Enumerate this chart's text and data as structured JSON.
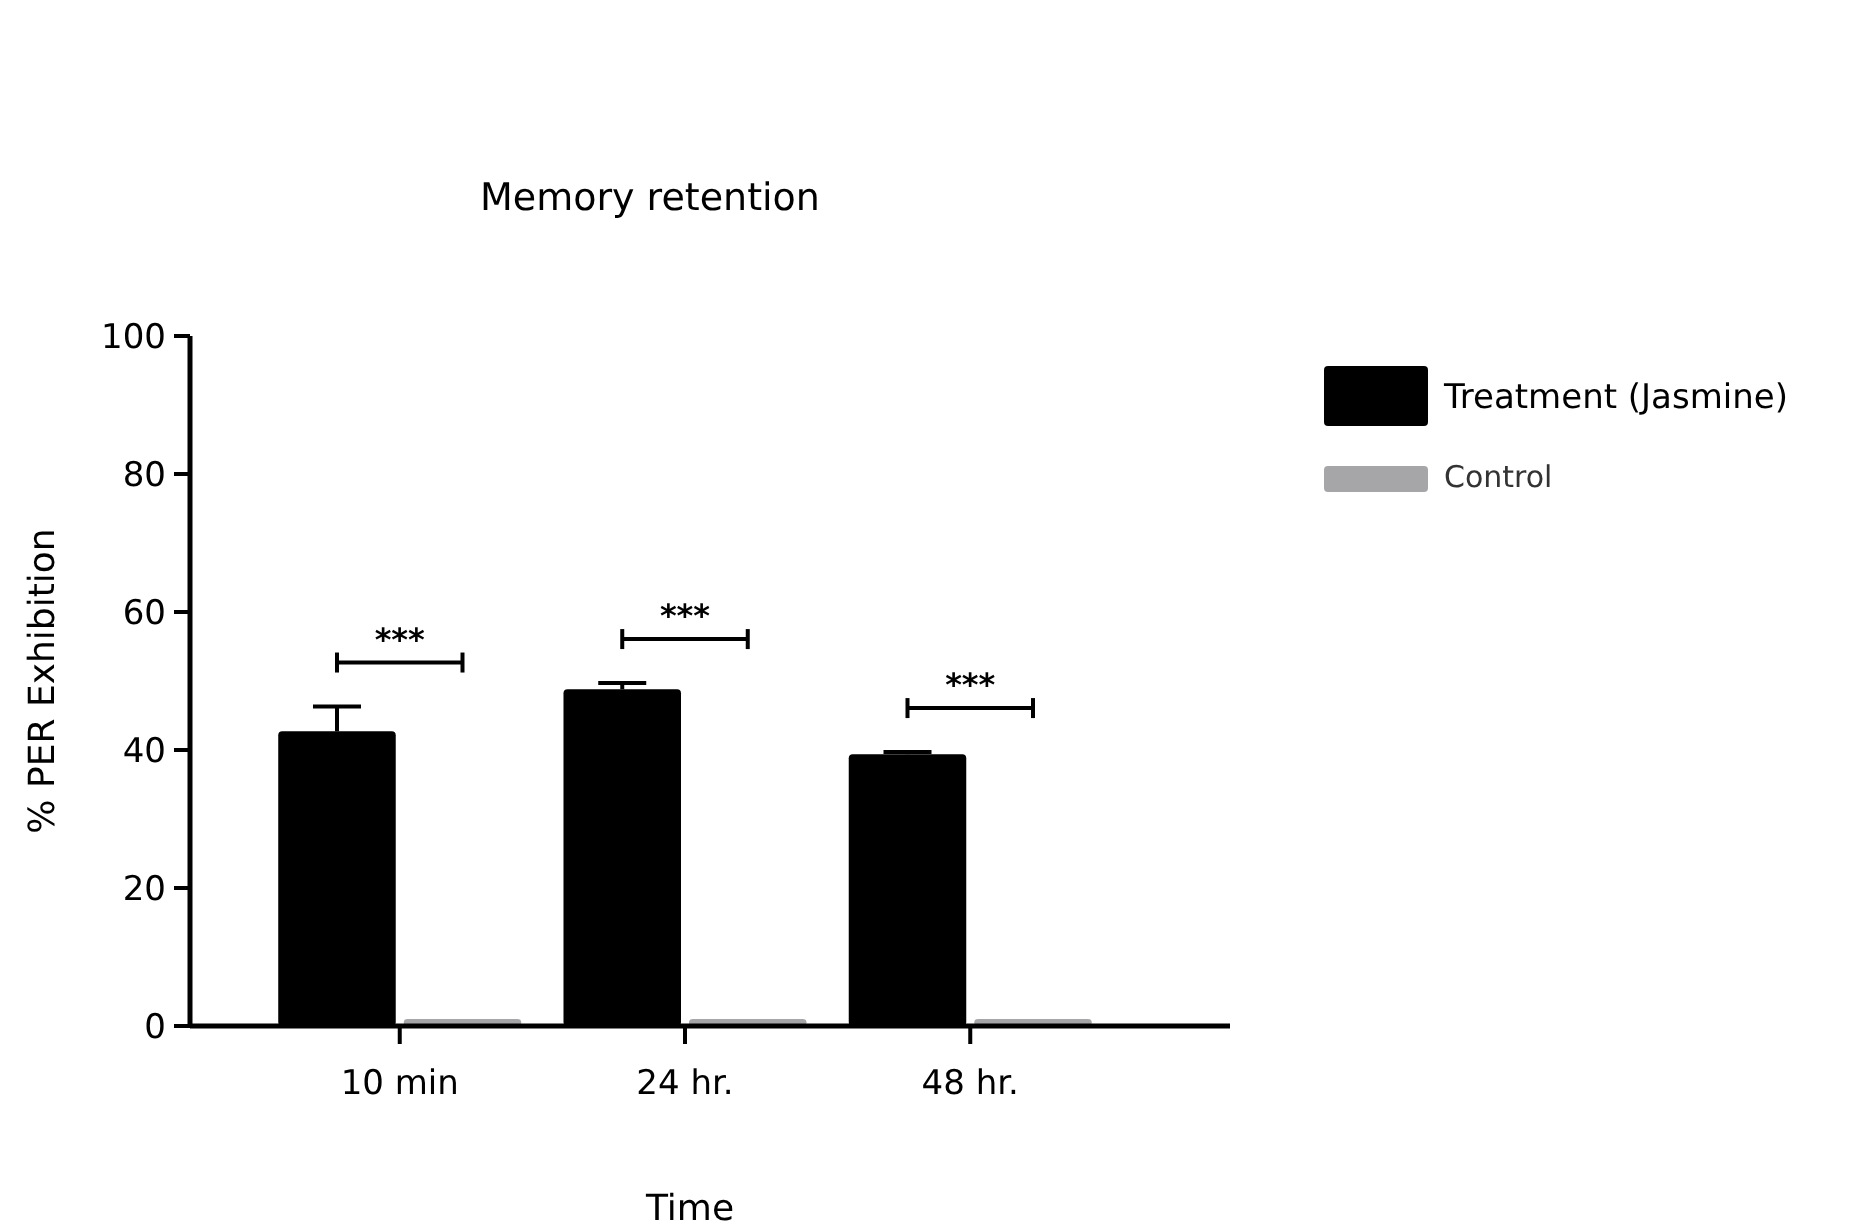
{
  "chart_data": {
    "type": "bar",
    "title": "Memory retention",
    "xlabel": "Time",
    "ylabel": "% PER Exhibition",
    "categories": [
      "10 min",
      "24 hr.",
      "48 hr."
    ],
    "series": [
      {
        "name": "Treatment (Jasmine)",
        "color": "#000000",
        "values": [
          42.7,
          48.8,
          39.4
        ],
        "errors": [
          3.6,
          0.9,
          0.3
        ]
      },
      {
        "name": "Control",
        "color": "#a6a6a8",
        "values": [
          1,
          1,
          1
        ]
      }
    ],
    "ylim": [
      0,
      100
    ],
    "yticks": [
      0,
      20,
      40,
      60,
      80,
      100
    ],
    "grid": false,
    "legend": "right",
    "annotations": [
      "***",
      "***",
      "***"
    ]
  }
}
